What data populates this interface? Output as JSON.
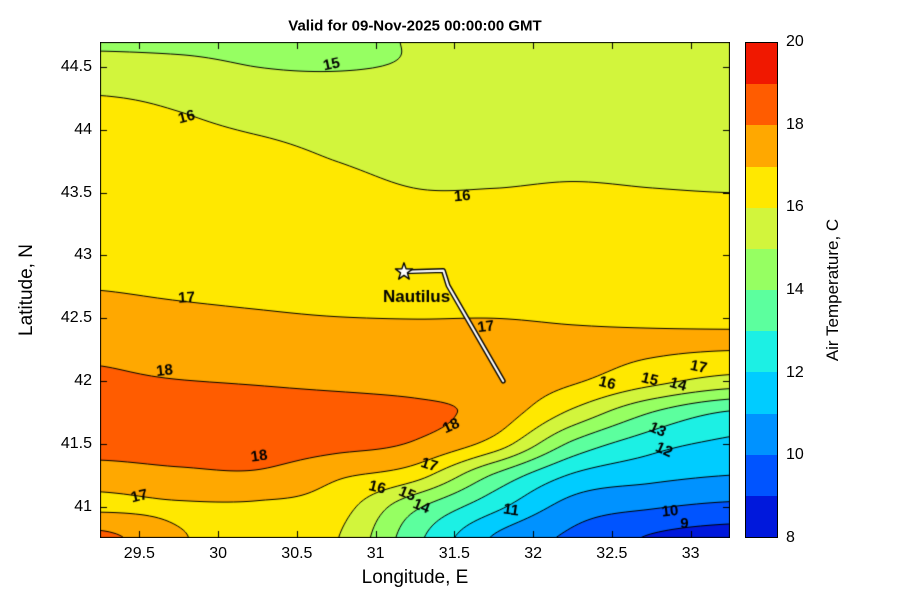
{
  "chart_data": {
    "type": "heatmap",
    "title": "Valid for 09-Nov-2025 00:00:00 GMT",
    "xlabel": "Longitude, E",
    "ylabel": "Latitude, N",
    "colorbar_label": "Air Temperature, C",
    "xlim": [
      29.25,
      33.25
    ],
    "ylim": [
      40.75,
      44.7
    ],
    "xticks": [
      29.5,
      30,
      30.5,
      31,
      31.5,
      32,
      32.5,
      33
    ],
    "yticks": [
      41,
      41.5,
      42,
      42.5,
      43,
      43.5,
      44,
      44.5
    ],
    "grid_on": false,
    "colorbar": {
      "min": 8,
      "max": 20,
      "ticks": [
        8,
        10,
        12,
        14,
        16,
        18,
        20
      ],
      "band_colors": [
        "#0018dc",
        "#0054ff",
        "#0092ff",
        "#00ccff",
        "#1cf0e4",
        "#5cff9e",
        "#96ff62",
        "#d2f53c",
        "#ffe800",
        "#ffa800",
        "#ff5c00",
        "#f01800"
      ]
    },
    "contour_levels": [
      9,
      10,
      11,
      12,
      13,
      14,
      15,
      16,
      17,
      18
    ],
    "grid": {
      "lons": [
        29.25,
        29.75,
        30.25,
        30.75,
        31.25,
        31.75,
        32.25,
        32.75,
        33.25
      ],
      "lats": [
        44.75,
        44.5,
        44.25,
        44.0,
        43.75,
        43.5,
        43.25,
        43.0,
        42.75,
        42.5,
        42.25,
        42.0,
        41.75,
        41.5,
        41.25,
        41.0,
        40.75
      ],
      "temps": [
        [
          14.75,
          14.7,
          14.7,
          14.8,
          15.05,
          15.3,
          15.42,
          15.47,
          15.5
        ],
        [
          15.35,
          15.25,
          15.0,
          14.95,
          15.1,
          15.5,
          15.62,
          15.68,
          15.7
        ],
        [
          16.05,
          15.85,
          15.55,
          15.45,
          15.6,
          15.78,
          15.84,
          15.85,
          15.85
        ],
        [
          16.3,
          16.15,
          15.95,
          15.8,
          15.78,
          15.82,
          15.85,
          15.84,
          15.82
        ],
        [
          16.5,
          16.35,
          16.2,
          16.0,
          15.9,
          15.9,
          15.92,
          15.9,
          15.88
        ],
        [
          16.65,
          16.5,
          16.35,
          16.15,
          16.02,
          16.02,
          16.05,
          16.02,
          16.0
        ],
        [
          16.8,
          16.65,
          16.5,
          16.32,
          16.2,
          16.2,
          16.2,
          16.16,
          16.14
        ],
        [
          16.9,
          16.78,
          16.65,
          16.5,
          16.38,
          16.36,
          16.35,
          16.3,
          16.28
        ],
        [
          16.98,
          16.9,
          16.8,
          16.65,
          16.55,
          16.5,
          16.5,
          16.45,
          16.42
        ],
        [
          17.25,
          17.18,
          17.1,
          17.02,
          16.99,
          17.0,
          16.93,
          16.88,
          16.86
        ],
        [
          17.85,
          17.7,
          17.55,
          17.42,
          17.3,
          17.25,
          17.18,
          17.1,
          17.02
        ],
        [
          18.1,
          18.02,
          17.92,
          17.75,
          17.6,
          17.5,
          17.1,
          16.3,
          15.6
        ],
        [
          18.35,
          18.55,
          18.55,
          18.5,
          18.25,
          17.6,
          15.8,
          14.0,
          12.9
        ],
        [
          18.45,
          18.6,
          18.55,
          18.3,
          17.9,
          16.6,
          13.8,
          12.4,
          11.8
        ],
        [
          17.5,
          17.75,
          17.85,
          17.15,
          16.4,
          13.9,
          11.9,
          11.3,
          11.0
        ],
        [
          16.85,
          16.9,
          16.85,
          16.45,
          14.2,
          12.3,
          10.6,
          10.1,
          9.8
        ],
        [
          18.3,
          17.1,
          16.55,
          16.05,
          13.3,
          10.9,
          9.8,
          8.9,
          8.5
        ]
      ]
    },
    "contour_labels": [
      {
        "t": "15",
        "lon": 30.72,
        "lat": 44.52,
        "rot": -12
      },
      {
        "t": "16",
        "lon": 29.8,
        "lat": 44.1,
        "rot": -14
      },
      {
        "t": "16",
        "lon": 31.55,
        "lat": 43.47,
        "rot": -4
      },
      {
        "t": "17",
        "lon": 29.8,
        "lat": 42.66,
        "rot": -4
      },
      {
        "t": "17",
        "lon": 31.7,
        "lat": 42.43,
        "rot": -8
      },
      {
        "t": "18",
        "lon": 29.66,
        "lat": 42.08,
        "rot": -6
      },
      {
        "t": "18",
        "lon": 31.48,
        "lat": 41.64,
        "rot": -25
      },
      {
        "t": "18",
        "lon": 30.26,
        "lat": 41.4,
        "rot": -8
      },
      {
        "t": "17",
        "lon": 31.34,
        "lat": 41.33,
        "rot": 18
      },
      {
        "t": "16",
        "lon": 31.01,
        "lat": 41.15,
        "rot": 14
      },
      {
        "t": "15",
        "lon": 31.2,
        "lat": 41.1,
        "rot": 22
      },
      {
        "t": "14",
        "lon": 31.29,
        "lat": 41.0,
        "rot": 22
      },
      {
        "t": "17",
        "lon": 29.5,
        "lat": 41.08,
        "rot": -14
      },
      {
        "t": "11",
        "lon": 31.86,
        "lat": 40.97,
        "rot": 8
      },
      {
        "t": "10",
        "lon": 32.87,
        "lat": 40.96,
        "rot": -6
      },
      {
        "t": "9",
        "lon": 32.96,
        "lat": 40.86,
        "rot": 0
      },
      {
        "t": "12",
        "lon": 32.83,
        "lat": 41.45,
        "rot": 24
      },
      {
        "t": "13",
        "lon": 32.79,
        "lat": 41.61,
        "rot": 24
      },
      {
        "t": "16",
        "lon": 32.47,
        "lat": 41.98,
        "rot": 14
      },
      {
        "t": "15",
        "lon": 32.74,
        "lat": 42.01,
        "rot": 14
      },
      {
        "t": "14",
        "lon": 32.92,
        "lat": 41.97,
        "rot": 16
      },
      {
        "t": "17",
        "lon": 33.05,
        "lat": 42.11,
        "rot": 12
      }
    ],
    "track": {
      "label": "Nautilus",
      "label_pos": [
        31.26,
        42.67
      ],
      "star": [
        31.18,
        42.87
      ],
      "points": [
        [
          31.18,
          42.87
        ],
        [
          31.43,
          42.88
        ],
        [
          31.46,
          42.76
        ],
        [
          31.81,
          42.0
        ]
      ]
    }
  }
}
